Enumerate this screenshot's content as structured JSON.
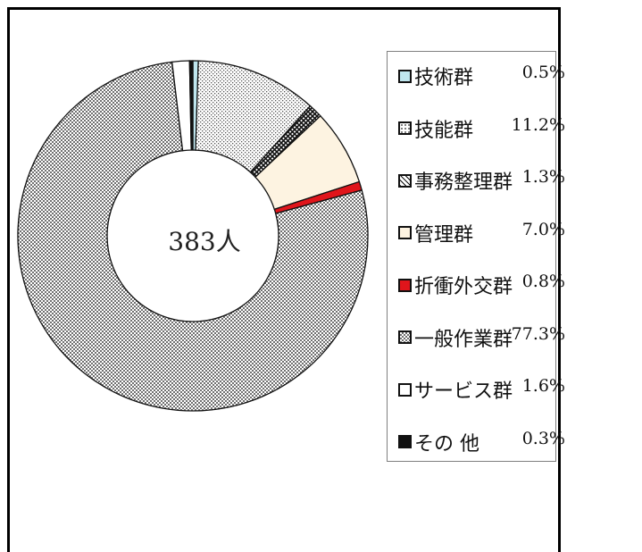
{
  "chart_data": {
    "type": "pie",
    "variant": "donut",
    "center_label": "383人",
    "categories": [
      "技術群",
      "技能群",
      "事務整理群",
      "管理群",
      "折衝外交群",
      "一般作業群",
      "サービス群",
      "その 他"
    ],
    "values": [
      0.5,
      11.2,
      1.3,
      7.0,
      0.8,
      77.3,
      1.6,
      0.3
    ],
    "value_labels": [
      "0.5%",
      "11.2%",
      "1.3%",
      "7.0%",
      "0.8%",
      "77.3%",
      "1.6%",
      "0.3%"
    ],
    "legend_placement": "right",
    "colors": [
      "#bfe6ee",
      "#f2f2f2",
      "#ffffff",
      "#fdf3e1",
      "#e0151b",
      "#d9d9d9",
      "#ffffff",
      "#111111"
    ],
    "patterns": [
      "solid",
      "dots",
      "cross",
      "solid",
      "solid",
      "fine-check",
      "solid",
      "solid"
    ]
  }
}
